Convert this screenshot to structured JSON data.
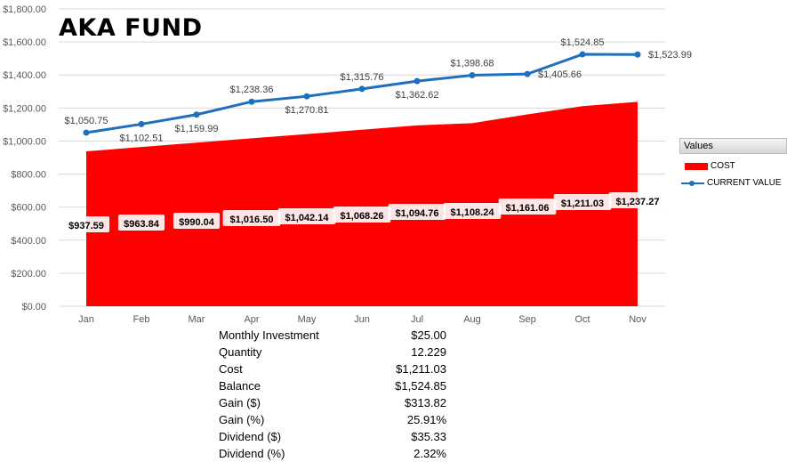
{
  "title": "AKA FUND",
  "chart_data": {
    "type": "area+line",
    "categories": [
      "Jan",
      "Feb",
      "Mar",
      "Apr",
      "May",
      "Jun",
      "Jul",
      "Aug",
      "Sep",
      "Oct",
      "Nov"
    ],
    "ylim": [
      0,
      1800
    ],
    "yticks": [
      "$0.00",
      "$200.00",
      "$400.00",
      "$600.00",
      "$800.00",
      "$1,000.00",
      "$1,200.00",
      "$1,400.00",
      "$1,600.00",
      "$1,800.00"
    ],
    "grid": true,
    "legend_title": "Values",
    "legend_position": "right",
    "series": [
      {
        "name": "COST",
        "type": "area",
        "color": "#ff0000",
        "values": [
          937.59,
          963.84,
          990.04,
          1016.5,
          1042.14,
          1068.26,
          1094.76,
          1108.24,
          1161.06,
          1211.03,
          1237.27
        ],
        "labels": [
          "$937.59",
          "$963.84",
          "$990.04",
          "$1,016.50",
          "$1,042.14",
          "$1,068.26",
          "$1,094.76",
          "$1,108.24",
          "$1,161.06",
          "$1,211.03",
          "$1,237.27"
        ]
      },
      {
        "name": "CURRENT VALUE",
        "type": "line",
        "color": "#1f6fbf",
        "values": [
          1050.75,
          1102.51,
          1159.99,
          1238.36,
          1270.81,
          1315.76,
          1362.62,
          1398.68,
          1405.66,
          1524.85,
          1523.99
        ],
        "labels": [
          "$1,050.75",
          "$1,102.51",
          "$1,159.99",
          "$1,238.36",
          "$1,270.81",
          "$1,315.76",
          "$1,362.62",
          "$1,398.68",
          "$1,405.66",
          "$1,524.85",
          "$1,523.99"
        ]
      }
    ]
  },
  "stats": [
    {
      "label": "Monthly Investment",
      "value": "$25.00"
    },
    {
      "label": "Quantity",
      "value": "12.229"
    },
    {
      "label": "Cost",
      "value": "$1,211.03"
    },
    {
      "label": "Balance",
      "value": "$1,524.85"
    },
    {
      "label": "Gain ($)",
      "value": "$313.82"
    },
    {
      "label": "Gain (%)",
      "value": "25.91%"
    },
    {
      "label": "Dividend ($)",
      "value": "$35.33"
    },
    {
      "label": "Dividend (%)",
      "value": "2.32%"
    }
  ]
}
